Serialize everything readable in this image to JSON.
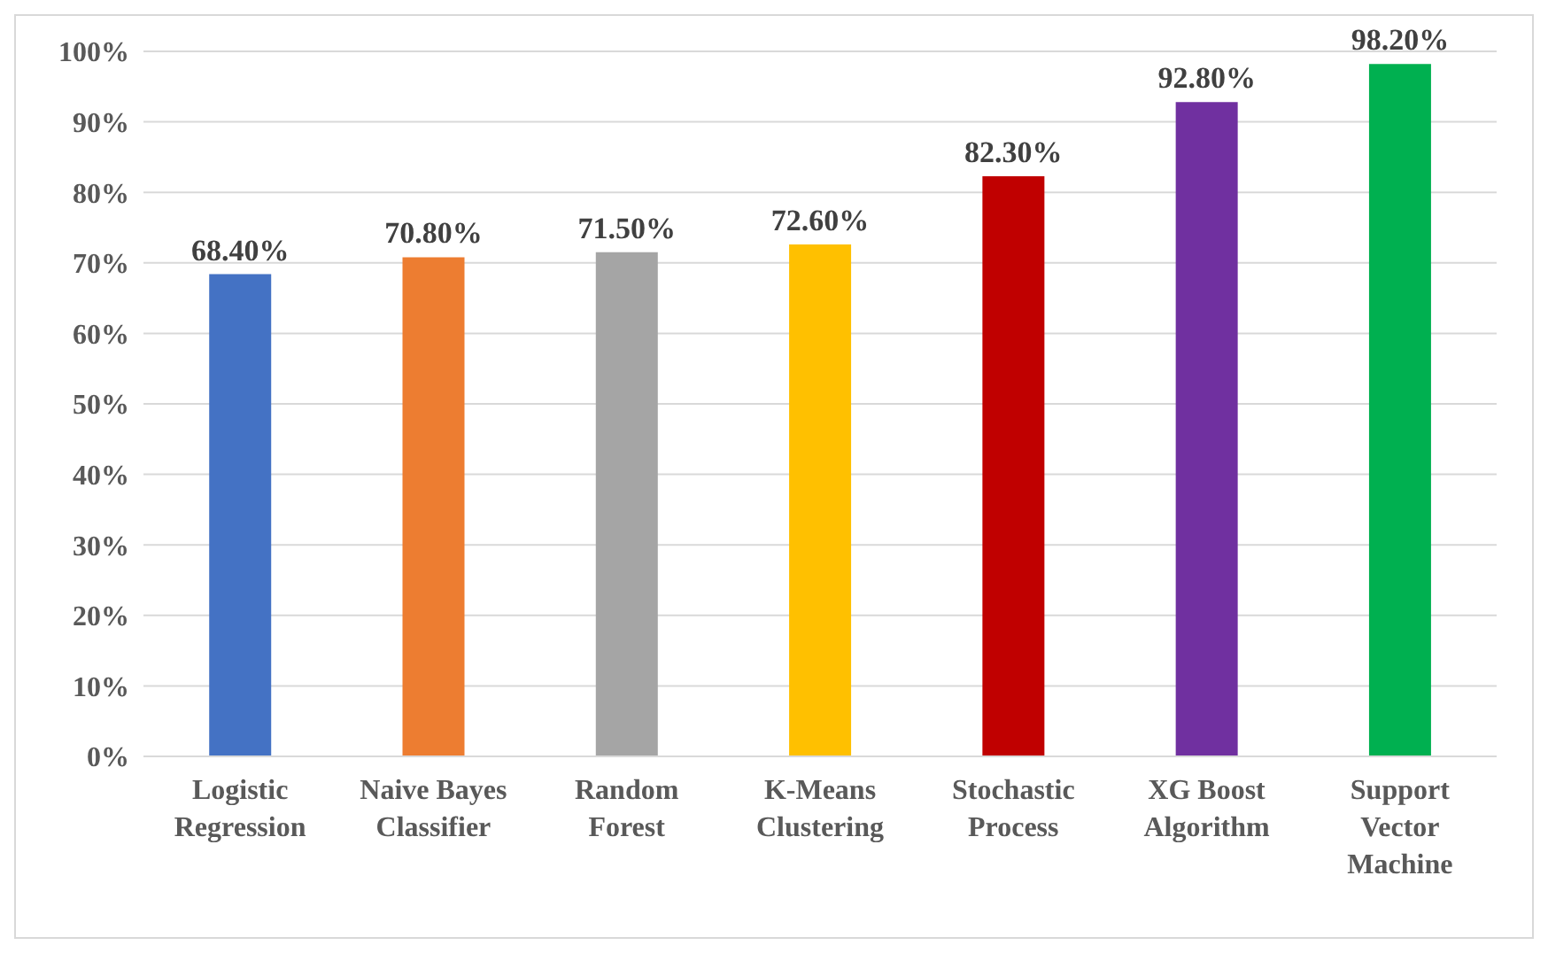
{
  "chart_data": {
    "type": "bar",
    "categories": [
      "Logistic Regression",
      "Naive Bayes Classifier",
      "Random Forest",
      "K-Means Clustering",
      "Stochastic Process",
      "XG Boost Algorithm",
      "Support Vector Machine"
    ],
    "values": [
      68.4,
      70.8,
      71.5,
      72.6,
      82.3,
      92.8,
      98.2
    ],
    "colors": [
      "#4472c4",
      "#ed7d31",
      "#a5a5a5",
      "#ffc000",
      "#c00000",
      "#7030a0",
      "#00b050"
    ],
    "value_labels": [
      "68.40%",
      "70.80%",
      "71.50%",
      "72.60%",
      "82.30%",
      "92.80%",
      "98.20%"
    ],
    "ylim": [
      0,
      100
    ],
    "yticks": [
      {
        "value": 0,
        "label": "0%"
      },
      {
        "value": 10,
        "label": "10%"
      },
      {
        "value": 20,
        "label": "20%"
      },
      {
        "value": 30,
        "label": "30%"
      },
      {
        "value": 40,
        "label": "40%"
      },
      {
        "value": 50,
        "label": "50%"
      },
      {
        "value": 60,
        "label": "60%"
      },
      {
        "value": 70,
        "label": "70%"
      },
      {
        "value": 80,
        "label": "80%"
      },
      {
        "value": 90,
        "label": "90%"
      },
      {
        "value": 100,
        "label": "100%"
      }
    ],
    "grid": "y"
  }
}
